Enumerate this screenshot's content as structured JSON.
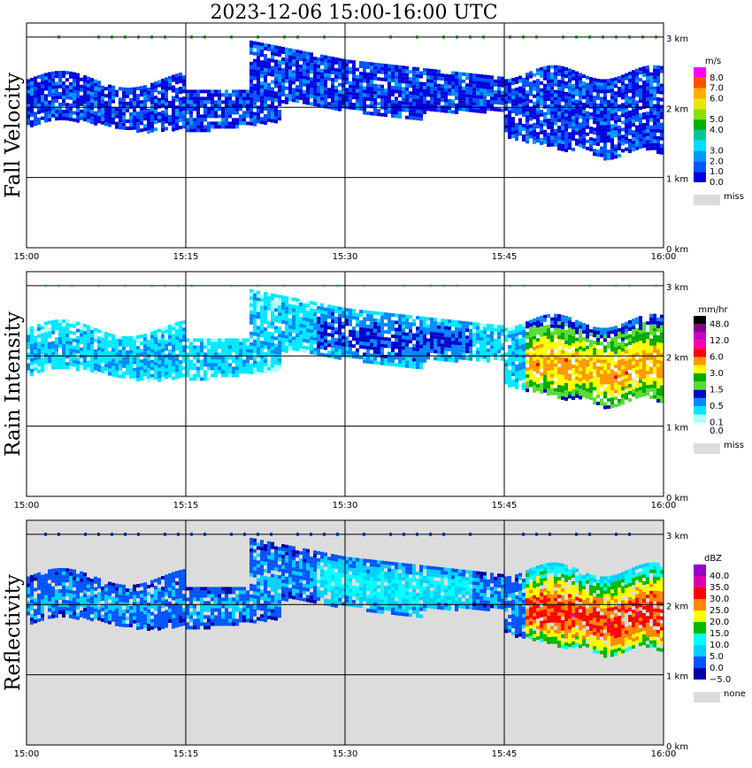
{
  "chart_data": {
    "type": "heatmap",
    "title": "2023-12-06  15:00-16:00 UTC",
    "x_ticks": [
      "15:00",
      "15:15",
      "15:30",
      "15:45",
      "16:00"
    ],
    "y_ticks": [
      "0 km",
      "1 km",
      "2 km",
      "3 km"
    ],
    "xlim": [
      "15:00",
      "16:00"
    ],
    "ylim_km": [
      0,
      3.2
    ],
    "grid": true,
    "panels": [
      {
        "name": "Fall Velocity",
        "label": "Fall Velocity",
        "unit": "m/s",
        "missing_label": "miss",
        "missing_color": "#dcdcdc",
        "colorbar": [
          {
            "label": "0.0",
            "color": "#0000dd"
          },
          {
            "label": "1.0",
            "color": "#0055ff"
          },
          {
            "label": "2.0",
            "color": "#0099ff"
          },
          {
            "label": "3.0",
            "color": "#00e0ff"
          },
          {
            "label": "",
            "color": "#00c8a0"
          },
          {
            "label": "4.0",
            "color": "#00b000"
          },
          {
            "label": "5.0",
            "color": "#88e000"
          },
          {
            "label": "",
            "color": "#e8e800"
          },
          {
            "label": "6.0",
            "color": "#ffb000"
          },
          {
            "label": "7.0",
            "color": "#ff5000"
          },
          {
            "label": "8.0",
            "color": "#ff00ff"
          }
        ]
      },
      {
        "name": "Rain Intensity",
        "label": "Rain Intensity",
        "unit": "mm/hr",
        "missing_label": "miss",
        "missing_color": "#dcdcdc",
        "colorbar": [
          {
            "label": "0.0",
            "color": "#ffffff"
          },
          {
            "label": "0.1",
            "color": "#aaffff"
          },
          {
            "label": "",
            "color": "#00e8ff"
          },
          {
            "label": "0.5",
            "color": "#0088ff"
          },
          {
            "label": "",
            "color": "#0000cc"
          },
          {
            "label": "1.5",
            "color": "#55dd33"
          },
          {
            "label": "",
            "color": "#00aa00"
          },
          {
            "label": "3.0",
            "color": "#ffff00"
          },
          {
            "label": "",
            "color": "#ff9900"
          },
          {
            "label": "6.0",
            "color": "#ff0000"
          },
          {
            "label": "",
            "color": "#ff00aa"
          },
          {
            "label": "12.0",
            "color": "#cc00cc"
          },
          {
            "label": "",
            "color": "#880088"
          },
          {
            "label": "48.0",
            "color": "#000000"
          }
        ]
      },
      {
        "name": "Reflectivity",
        "label": "Reflectivity",
        "unit": "dBZ",
        "missing_label": "none",
        "missing_color": "#dcdcdc",
        "colorbar": [
          {
            "label": "−5.0",
            "color": "#0000aa"
          },
          {
            "label": "0.0",
            "color": "#0055ff"
          },
          {
            "label": "5.0",
            "color": "#00d0ff"
          },
          {
            "label": "10.0",
            "color": "#00ffff"
          },
          {
            "label": "15.0",
            "color": "#00bb00"
          },
          {
            "label": "20.0",
            "color": "#ffff00"
          },
          {
            "label": "25.0",
            "color": "#ff8800"
          },
          {
            "label": "30.0",
            "color": "#ff0000"
          },
          {
            "label": "35.0",
            "color": "#dd00aa"
          },
          {
            "label": "40.0",
            "color": "#9900cc"
          }
        ]
      }
    ]
  }
}
